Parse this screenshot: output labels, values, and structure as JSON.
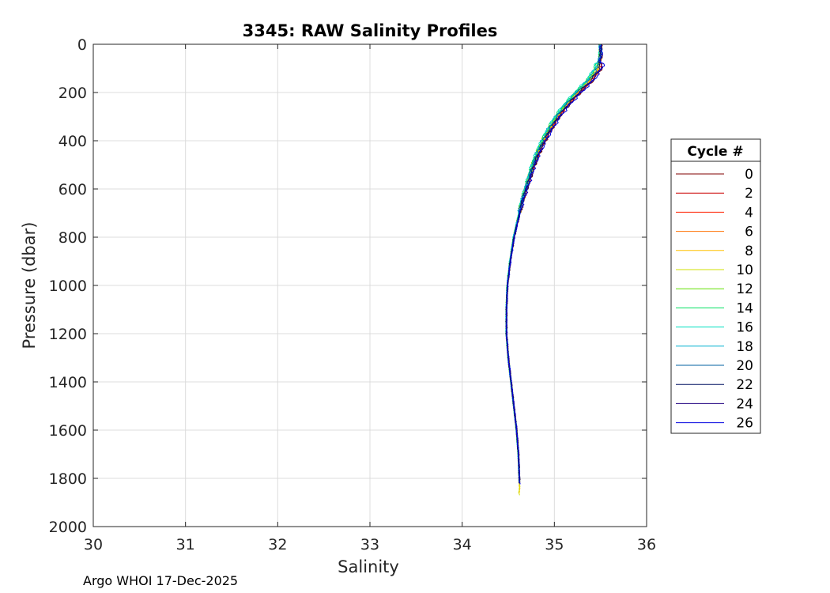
{
  "chart_data": {
    "type": "line",
    "title": "3345: RAW Salinity Profiles",
    "xlabel": "Salinity",
    "ylabel": "Pressure (dbar)",
    "xlim": [
      30,
      36
    ],
    "ylim": [
      0,
      2000
    ],
    "y_reversed": true,
    "grid": true,
    "x_ticks": [
      30,
      31,
      32,
      33,
      34,
      35,
      36
    ],
    "y_ticks": [
      0,
      200,
      400,
      600,
      800,
      1000,
      1200,
      1400,
      1600,
      1800,
      2000
    ],
    "legend": {
      "title": "Cycle #",
      "placement": "outside-right",
      "entries": [
        "0",
        "2",
        "4",
        "6",
        "8",
        "10",
        "12",
        "14",
        "16",
        "18",
        "20",
        "22",
        "24",
        "26"
      ]
    },
    "base_profile": {
      "pressure": [
        0,
        50,
        100,
        150,
        200,
        250,
        300,
        350,
        400,
        450,
        500,
        550,
        600,
        650,
        700,
        800,
        900,
        1000,
        1100,
        1200,
        1300,
        1400,
        1500,
        1600,
        1700,
        1800
      ],
      "salinity": [
        35.5,
        35.5,
        35.47,
        35.38,
        35.25,
        35.13,
        35.03,
        34.95,
        34.88,
        34.82,
        34.77,
        34.73,
        34.69,
        34.65,
        34.62,
        34.56,
        34.52,
        34.49,
        34.48,
        34.48,
        34.5,
        34.53,
        34.56,
        34.59,
        34.61,
        34.62
      ]
    },
    "series": [
      {
        "name": "0",
        "color": "#800000",
        "offset": 0.04,
        "max_pressure": 1810
      },
      {
        "name": "2",
        "color": "#cc0000",
        "offset": 0.03,
        "max_pressure": 1815
      },
      {
        "name": "4",
        "color": "#ff2000",
        "offset": 0.02,
        "max_pressure": 1820
      },
      {
        "name": "6",
        "color": "#ff7000",
        "offset": 0.01,
        "max_pressure": 1820
      },
      {
        "name": "8",
        "color": "#ffc000",
        "offset": 0.0,
        "max_pressure": 1860
      },
      {
        "name": "10",
        "color": "#d0e000",
        "offset": -0.01,
        "max_pressure": 1870
      },
      {
        "name": "12",
        "color": "#60e000",
        "offset": -0.02,
        "max_pressure": 1820
      },
      {
        "name": "14",
        "color": "#00e060",
        "offset": -0.03,
        "max_pressure": 1815
      },
      {
        "name": "16",
        "color": "#00e0c0",
        "offset": -0.035,
        "max_pressure": 1815
      },
      {
        "name": "18",
        "color": "#00b0d0",
        "offset": -0.025,
        "max_pressure": 1815
      },
      {
        "name": "20",
        "color": "#0060a0",
        "offset": 0.0,
        "max_pressure": 1815
      },
      {
        "name": "22",
        "color": "#001060",
        "offset": 0.02,
        "max_pressure": 1820
      },
      {
        "name": "24",
        "color": "#200080",
        "offset": 0.035,
        "max_pressure": 1820
      },
      {
        "name": "26",
        "color": "#0000e0",
        "offset": 0.05,
        "max_pressure": 1825
      }
    ]
  },
  "footer": "Argo WHOI 17-Dec-2025"
}
